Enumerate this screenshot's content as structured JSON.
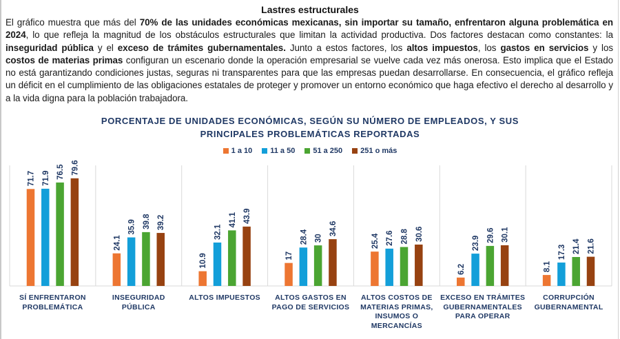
{
  "document": {
    "title": "Lastres estructurales",
    "paragraph": [
      {
        "t": "El gráfico muestra que más del ",
        "b": false
      },
      {
        "t": "70% de las unidades económicas mexicanas, sin importar su tamaño, enfrentaron alguna problemática en 2024",
        "b": true
      },
      {
        "t": ", lo que refleja la magnitud de los obstáculos estructurales que limitan la actividad productiva. Dos factores destacan como constantes: la ",
        "b": false
      },
      {
        "t": "inseguridad pública",
        "b": true
      },
      {
        "t": " y el ",
        "b": false
      },
      {
        "t": "exceso de trámites gubernamentales.",
        "b": true
      },
      {
        "t": " Junto a estos factores, los ",
        "b": false
      },
      {
        "t": "altos impuestos",
        "b": true
      },
      {
        "t": ", los ",
        "b": false
      },
      {
        "t": "gastos en servicios",
        "b": true
      },
      {
        "t": " y los ",
        "b": false
      },
      {
        "t": "costos de materias primas",
        "b": true
      },
      {
        "t": " configuran un escenario donde la operación empresarial se vuelve cada vez más onerosa. Esto implica que el Estado no está garantizando condiciones justas, seguras ni transparentes para que las empresas puedan desarrollarse. En consecuencia, el gráfico refleja un déficit en el cumplimiento de las obligaciones estatales de proteger y promover un entorno económico que haga efectivo el derecho al desarrollo y a la vida digna para la población trabajadora.",
        "b": false
      }
    ]
  },
  "chart_data": {
    "type": "bar",
    "title_lines": [
      "PORCENTAJE DE UNIDADES ECONÓMICAS, SEGÚN SU NÚMERO DE EMPLEADOS, Y SUS",
      "PRINCIPALES PROBLEMÁTICAS REPORTADAS"
    ],
    "xlabel": "",
    "ylabel": "",
    "ylim": [
      0,
      82
    ],
    "grid": false,
    "legend_position": "top-center",
    "categories": [
      [
        "SÍ ENFRENTARON",
        "PROBLEMÁTICA"
      ],
      [
        "INSEGURIDAD",
        "PÚBLICA"
      ],
      [
        "ALTOS IMPUESTOS"
      ],
      [
        "ALTOS GASTOS EN",
        "PAGO DE SERVICIOS"
      ],
      [
        "ALTOS COSTOS DE",
        "MATERIAS PRIMAS,",
        "INSUMOS O",
        "MERCANCÍAS"
      ],
      [
        "EXCESO EN TRÁMITES",
        "GUBERNAMENTALES",
        "PARA OPERAR"
      ],
      [
        "CORRUPCIÓN",
        "GUBERNAMENTAL"
      ]
    ],
    "series": [
      {
        "name": "1 a 10",
        "color": "#ed7632",
        "values": [
          71.7,
          24.1,
          10.9,
          17,
          25.4,
          6.2,
          8.1
        ],
        "labels": [
          "71.7",
          "24.1",
          "10.9",
          "17",
          "25.4",
          "6.2",
          "8.1"
        ]
      },
      {
        "name": "11 a 50",
        "color": "#139fd9",
        "values": [
          71.9,
          35.9,
          32.1,
          28.4,
          27.6,
          23.9,
          17.3
        ],
        "labels": [
          "71.9",
          "35.9",
          "32.1",
          "28.4",
          "27.6",
          "23.9",
          "17.3"
        ]
      },
      {
        "name": "51  a 250",
        "color": "#4ba532",
        "values": [
          76.5,
          39.8,
          41.1,
          30,
          28.8,
          29.6,
          21.4
        ],
        "labels": [
          "76.5",
          "39.8",
          "41.1",
          "30",
          "28.8",
          "29.6",
          "21.4"
        ]
      },
      {
        "name": "251 o más",
        "color": "#974211",
        "values": [
          79.6,
          39.2,
          43.9,
          34.6,
          30.6,
          30.1,
          21.6
        ],
        "labels": [
          "79.6",
          "39.2",
          "43.9",
          "34.6",
          "30.6",
          "30.1",
          "21.6"
        ]
      }
    ],
    "label_color": "#1f3864"
  }
}
